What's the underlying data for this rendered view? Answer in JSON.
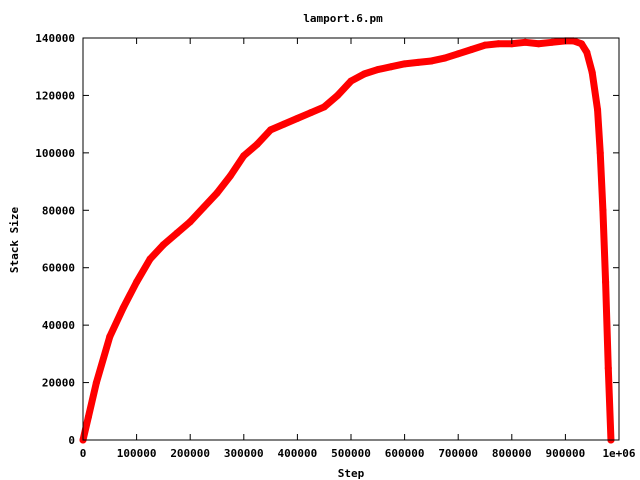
{
  "chart_data": {
    "type": "line",
    "title": "lamport.6.pm",
    "xlabel": "Step",
    "ylabel": "Stack Size",
    "xlim": [
      0,
      1000000
    ],
    "ylim": [
      0,
      140000
    ],
    "x_ticks": [
      0,
      100000,
      200000,
      300000,
      400000,
      500000,
      600000,
      700000,
      800000,
      900000,
      1000000
    ],
    "x_tick_labels": [
      "0",
      "100000",
      "200000",
      "300000",
      "400000",
      "500000",
      "600000",
      "700000",
      "800000",
      "900000",
      "1e+06"
    ],
    "y_ticks": [
      0,
      20000,
      40000,
      60000,
      80000,
      100000,
      120000,
      140000
    ],
    "y_tick_labels": [
      "0",
      "20000",
      "40000",
      "60000",
      "80000",
      "100000",
      "120000",
      "140000"
    ],
    "grid": false,
    "legend": false,
    "series": [
      {
        "color": "#ff0000",
        "x": [
          0,
          10000,
          25000,
          50000,
          75000,
          100000,
          125000,
          150000,
          175000,
          200000,
          225000,
          250000,
          275000,
          300000,
          325000,
          350000,
          375000,
          400000,
          425000,
          450000,
          475000,
          500000,
          525000,
          550000,
          575000,
          600000,
          625000,
          650000,
          675000,
          700000,
          725000,
          750000,
          775000,
          800000,
          825000,
          850000,
          875000,
          900000,
          915000,
          930000,
          940000,
          950000,
          960000,
          965000,
          970000,
          975000,
          980000,
          985000
        ],
        "y": [
          0,
          8000,
          20000,
          36000,
          46000,
          55000,
          63000,
          68000,
          72000,
          76000,
          81000,
          86000,
          92000,
          99000,
          103000,
          108000,
          110000,
          112000,
          114000,
          116000,
          120000,
          125000,
          127500,
          129000,
          130000,
          131000,
          131500,
          132000,
          133000,
          134500,
          136000,
          137500,
          138000,
          138000,
          138500,
          138000,
          138500,
          139000,
          139000,
          138000,
          135000,
          128000,
          115000,
          100000,
          80000,
          55000,
          25000,
          0
        ]
      }
    ]
  }
}
